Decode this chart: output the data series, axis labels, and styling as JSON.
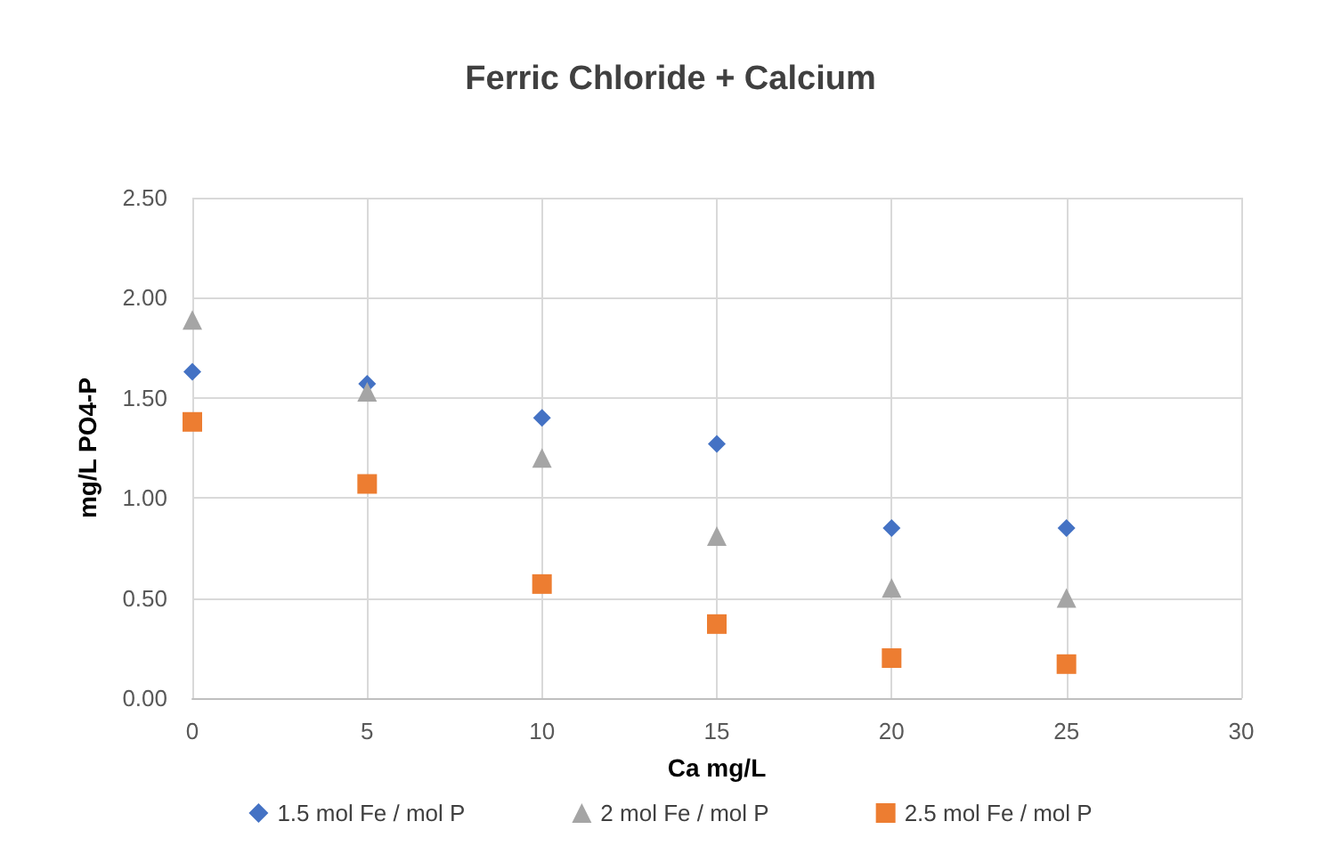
{
  "chart_data": {
    "type": "scatter",
    "title": "Ferric Chloride + Calcium",
    "xlabel": "Ca mg/L",
    "ylabel": "mg/L PO4-P",
    "x": [
      0,
      5,
      10,
      15,
      20,
      25
    ],
    "series": [
      {
        "name": "1.5 mol Fe / mol P",
        "color": "#4472c4",
        "marker": "diamond",
        "values": [
          1.63,
          1.57,
          1.4,
          1.27,
          0.85,
          0.85
        ]
      },
      {
        "name": "2 mol Fe / mol P",
        "color": "#a5a5a5",
        "marker": "triangle",
        "values": [
          1.89,
          1.53,
          1.2,
          0.81,
          0.55,
          0.5
        ]
      },
      {
        "name": "2.5 mol Fe / mol P",
        "color": "#ed7d31",
        "marker": "square",
        "values": [
          1.38,
          1.07,
          0.57,
          0.37,
          0.2,
          0.17
        ]
      }
    ],
    "xlim": [
      0,
      30
    ],
    "xticks": [
      0,
      5,
      10,
      15,
      20,
      25,
      30
    ],
    "ylim": [
      0,
      2.5
    ],
    "yticks": [
      {
        "value": 0,
        "label": "0.00"
      },
      {
        "value": 0.5,
        "label": "0.50"
      },
      {
        "value": 1,
        "label": "1.00"
      },
      {
        "value": 1.5,
        "label": "1.50"
      },
      {
        "value": 2,
        "label": "2.00"
      },
      {
        "value": 2.5,
        "label": "2.50"
      }
    ],
    "grid": true,
    "legend": "bottom"
  }
}
